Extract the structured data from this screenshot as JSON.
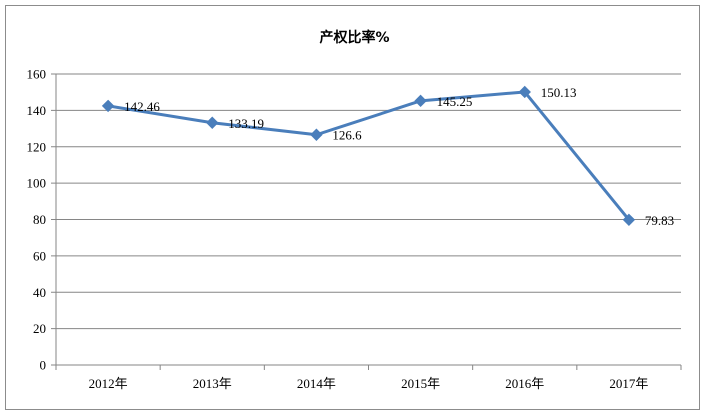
{
  "chart_data": {
    "type": "line",
    "title": "产权比率%",
    "categories": [
      "2012年",
      "2013年",
      "2014年",
      "2015年",
      "2016年",
      "2017年"
    ],
    "series": [
      {
        "values": [
          142.46,
          133.19,
          126.6,
          145.25,
          150.13,
          79.83
        ],
        "labels": [
          "142.46",
          "133.19",
          "126.6",
          "145.25",
          "150.13",
          "79.83"
        ],
        "color": "#4a7ebb",
        "marker": "diamond"
      }
    ],
    "ylim": [
      0,
      160
    ],
    "yticks": [
      0,
      20,
      40,
      60,
      80,
      100,
      120,
      140,
      160
    ],
    "grid": true,
    "legend": "none"
  }
}
